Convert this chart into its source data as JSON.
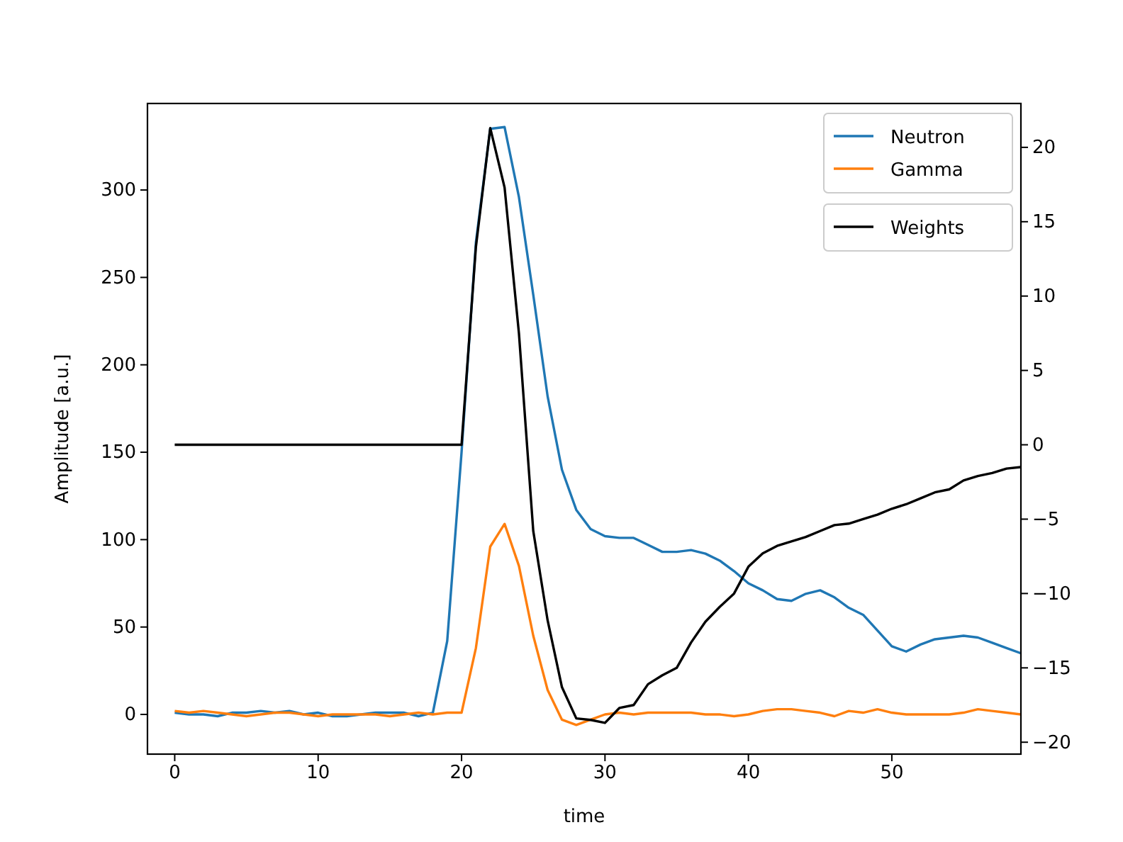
{
  "chart_data": {
    "type": "line",
    "xlabel": "time",
    "ylabel": "Amplitude [a.u.]",
    "x": [
      0,
      1,
      2,
      3,
      4,
      5,
      6,
      7,
      8,
      9,
      10,
      11,
      12,
      13,
      14,
      15,
      16,
      17,
      18,
      19,
      20,
      21,
      22,
      23,
      24,
      25,
      26,
      27,
      28,
      29,
      30,
      31,
      32,
      33,
      34,
      35,
      36,
      37,
      38,
      39,
      40,
      41,
      42,
      43,
      44,
      45,
      46,
      47,
      48,
      49,
      50,
      51,
      52,
      53,
      54,
      55,
      56,
      57,
      58,
      59
    ],
    "series": [
      {
        "name": "Neutron",
        "color": "#1f77b4",
        "values": [
          1,
          0,
          0,
          -1,
          1,
          1,
          2,
          1,
          2,
          0,
          1,
          -1,
          -1,
          0,
          1,
          1,
          1,
          -1,
          1,
          42,
          150,
          270,
          335,
          336,
          296,
          240,
          182,
          140,
          117,
          106,
          102,
          101,
          101,
          97,
          93,
          93,
          94,
          92,
          88,
          82,
          75,
          71,
          66,
          65,
          69,
          71,
          67,
          61,
          57,
          48,
          39,
          36,
          40,
          43,
          44,
          45,
          44,
          41,
          38,
          35
        ]
      },
      {
        "name": "Gamma",
        "color": "#ff7f0e",
        "values": [
          2,
          1,
          2,
          1,
          0,
          -1,
          0,
          1,
          1,
          0,
          -1,
          0,
          0,
          0,
          0,
          -1,
          0,
          1,
          0,
          1,
          1,
          38,
          96,
          109,
          85,
          45,
          14,
          -3,
          -6,
          -3,
          0,
          1,
          0,
          1,
          1,
          1,
          1,
          0,
          0,
          -1,
          0,
          2,
          3,
          3,
          2,
          1,
          -1,
          2,
          1,
          3,
          1,
          0,
          0,
          0,
          0,
          1,
          3,
          2,
          1,
          0
        ]
      },
      {
        "name": "Weights",
        "color": "#000000",
        "axis": "y2",
        "values": [
          0,
          0,
          0,
          0,
          0,
          0,
          0,
          0,
          0,
          0,
          0,
          0,
          0,
          0,
          0,
          0,
          0,
          0,
          0,
          0,
          0,
          13.3,
          21.3,
          17.3,
          7.5,
          -5.8,
          -11.8,
          -16.3,
          -18.4,
          -18.5,
          -18.7,
          -17.7,
          -17.5,
          -16.1,
          -15.5,
          -15.0,
          -13.3,
          -11.9,
          -10.9,
          -10.0,
          -8.2,
          -7.3,
          -6.8,
          -6.5,
          -6.2,
          -5.8,
          -5.4,
          -5.3,
          -5.0,
          -4.7,
          -4.3,
          -4.0,
          -3.6,
          -3.2,
          -3.0,
          -2.4,
          -2.1,
          -1.9,
          -1.6,
          -1.5
        ]
      }
    ],
    "xlim": [
      -1.9,
      59
    ],
    "xticks": [
      0,
      10,
      20,
      30,
      40,
      50
    ],
    "ylim": [
      -22.7,
      349.5
    ],
    "yticks": [
      0,
      50,
      100,
      150,
      200,
      250,
      300
    ],
    "y2lim": [
      -20.8,
      22.95
    ],
    "y2ticks": [
      {
        "value": -20,
        "label": "−20"
      },
      {
        "value": -15,
        "label": "−15"
      },
      {
        "value": -10,
        "label": "−10"
      },
      {
        "value": -5,
        "label": "−5"
      },
      0,
      5,
      10,
      15,
      20
    ],
    "legend": "top right",
    "line_style": "solid",
    "marker": "none"
  }
}
